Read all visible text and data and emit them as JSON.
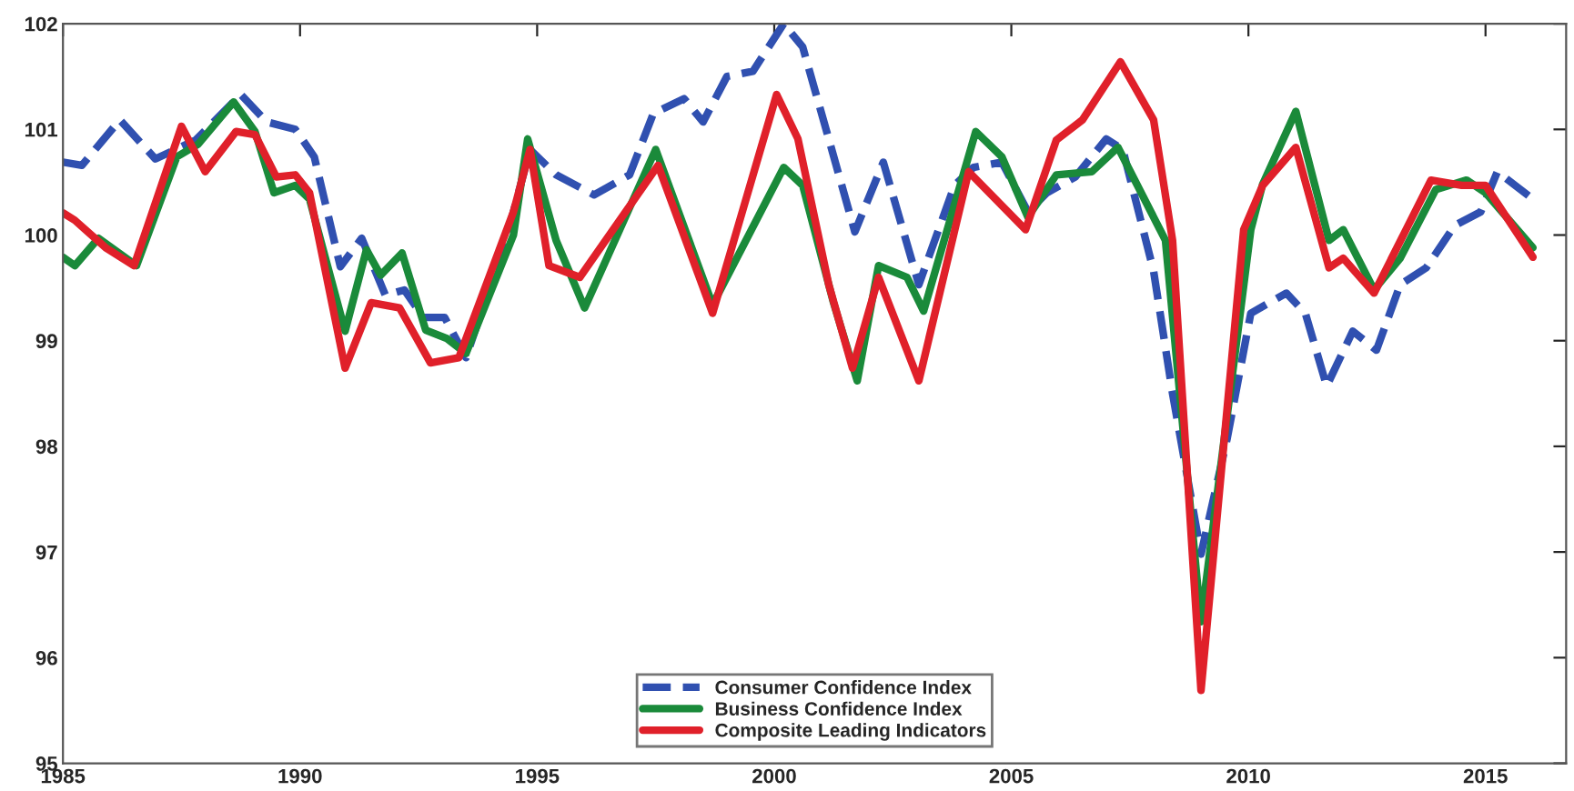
{
  "chart_data": {
    "type": "line",
    "xlim": [
      1985,
      2016.7
    ],
    "ylim": [
      95,
      102
    ],
    "xticks": [
      1985,
      1990,
      1995,
      2000,
      2005,
      2010,
      2015
    ],
    "yticks": [
      95,
      96,
      97,
      98,
      99,
      100,
      101,
      102
    ],
    "grid": false,
    "legend": "bottom",
    "marker": "none",
    "series": [
      {
        "name": "Consumer Confidence Index",
        "color": "#3050b0",
        "line_style": "dashed",
        "x": [
          1985.0,
          1985.4,
          1986.2,
          1986.95,
          1987.8,
          1988.75,
          1989.3,
          1989.9,
          1990.3,
          1990.85,
          1991.3,
          1991.8,
          1992.2,
          1992.6,
          1993.05,
          1993.5,
          1994.4,
          1994.85,
          1995.4,
          1996.2,
          1996.95,
          1997.45,
          1998.1,
          1998.5,
          1999.0,
          1999.55,
          2000.2,
          2000.6,
          2001.15,
          2001.7,
          2002.3,
          2003.05,
          2003.8,
          2004.2,
          2004.8,
          2005.35,
          2005.75,
          2006.35,
          2007.0,
          2007.35,
          2008.0,
          2008.4,
          2009.0,
          2009.55,
          2010.05,
          2010.8,
          2011.2,
          2011.65,
          2012.2,
          2012.7,
          2013.2,
          2013.75,
          2014.35,
          2014.9,
          2015.25,
          2016.0
        ],
        "values": [
          100.69,
          100.66,
          101.09,
          100.72,
          100.9,
          101.33,
          101.07,
          101.0,
          100.74,
          99.7,
          99.97,
          99.43,
          99.48,
          99.22,
          99.22,
          98.84,
          100.05,
          100.81,
          100.57,
          100.38,
          100.57,
          101.15,
          101.29,
          101.07,
          101.5,
          101.55,
          102.0,
          101.78,
          100.91,
          100.03,
          100.69,
          99.53,
          100.47,
          100.64,
          100.69,
          100.22,
          100.4,
          100.55,
          100.91,
          100.81,
          99.66,
          98.5,
          96.98,
          98.07,
          99.26,
          99.45,
          99.26,
          98.57,
          99.09,
          98.91,
          99.53,
          99.69,
          100.09,
          100.22,
          100.6,
          100.34
        ]
      },
      {
        "name": "Business Confidence Index",
        "color": "#1a8a3a",
        "line_style": "solid",
        "x": [
          1985.0,
          1985.25,
          1985.75,
          1986.55,
          1987.4,
          1987.85,
          1988.6,
          1989.05,
          1989.45,
          1989.9,
          1990.2,
          1990.95,
          1991.4,
          1991.7,
          1992.15,
          1992.65,
          1993.1,
          1993.5,
          1994.5,
          1994.8,
          1995.4,
          1996.0,
          1997.5,
          1998.7,
          2000.2,
          2000.6,
          2001.25,
          2001.75,
          2002.2,
          2002.8,
          2003.15,
          2004.25,
          2004.8,
          2005.35,
          2005.95,
          2006.7,
          2007.25,
          2008.25,
          2009.0,
          2010.05,
          2010.3,
          2011.0,
          2011.7,
          2012.0,
          2012.65,
          2013.2,
          2013.95,
          2014.6,
          2015.0,
          2016.0
        ],
        "values": [
          99.79,
          99.71,
          99.97,
          99.71,
          100.74,
          100.86,
          101.26,
          100.98,
          100.4,
          100.47,
          100.34,
          99.09,
          99.86,
          99.62,
          99.83,
          99.1,
          99.02,
          98.88,
          100.0,
          100.91,
          99.95,
          99.31,
          100.81,
          99.34,
          100.64,
          100.47,
          99.36,
          98.62,
          99.71,
          99.6,
          99.28,
          100.98,
          100.74,
          100.17,
          100.57,
          100.6,
          100.83,
          99.95,
          96.34,
          100.05,
          100.48,
          101.17,
          99.95,
          100.05,
          99.48,
          99.78,
          100.43,
          100.52,
          100.4,
          99.88
        ]
      },
      {
        "name": "Composite Leading Indicators",
        "color": "#e0202a",
        "line_style": "solid",
        "x": [
          1985.0,
          1985.25,
          1985.9,
          1986.5,
          1987.5,
          1988.0,
          1988.65,
          1989.05,
          1989.5,
          1989.9,
          1990.2,
          1990.95,
          1991.5,
          1992.1,
          1992.75,
          1993.35,
          1994.5,
          1994.85,
          1995.25,
          1995.9,
          1997.55,
          1998.7,
          2000.05,
          2000.5,
          2001.15,
          2001.65,
          2002.2,
          2003.05,
          2004.1,
          2005.3,
          2005.95,
          2006.5,
          2007.3,
          2008.0,
          2008.4,
          2009.0,
          2009.9,
          2010.3,
          2011.0,
          2011.7,
          2012.0,
          2012.65,
          2013.85,
          2014.5,
          2015.0,
          2016.0
        ],
        "values": [
          100.21,
          100.14,
          99.88,
          99.71,
          101.03,
          100.6,
          100.98,
          100.95,
          100.55,
          100.57,
          100.4,
          98.74,
          99.36,
          99.31,
          98.79,
          98.84,
          100.22,
          100.81,
          99.71,
          99.6,
          100.66,
          99.26,
          101.33,
          100.91,
          99.53,
          98.74,
          99.6,
          98.62,
          100.6,
          100.05,
          100.9,
          101.09,
          101.64,
          101.09,
          99.95,
          95.69,
          100.05,
          100.47,
          100.83,
          99.69,
          99.78,
          99.45,
          100.52,
          100.47,
          100.47,
          99.79
        ]
      }
    ]
  }
}
